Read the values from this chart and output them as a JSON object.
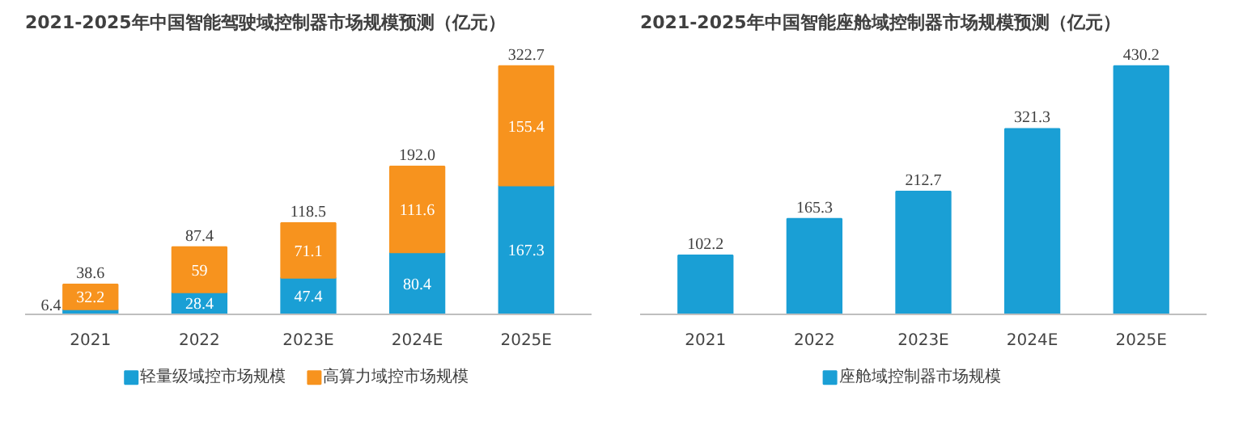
{
  "chart_data": [
    {
      "type": "bar",
      "title": "2021-2025年中国智能驾驶域控制器市场规模预测（亿元）",
      "categories": [
        "2021",
        "2022",
        "2023E",
        "2024E",
        "2025E"
      ],
      "stacked": true,
      "data_labels": true,
      "legend": "bottom",
      "series": [
        {
          "name": "轻量级域控市场规模",
          "color": "#1a9fd5",
          "values": [
            6.4,
            28.4,
            47.4,
            80.4,
            167.3
          ]
        },
        {
          "name": "高算力域控市场规模",
          "color": "#f7931e",
          "values": [
            32.2,
            59,
            71.1,
            111.6,
            155.4
          ]
        }
      ],
      "totals": [
        "38.6",
        "87.4",
        "118.5",
        "192.0",
        "322.7"
      ]
    },
    {
      "type": "bar",
      "title": "2021-2025年中国智能座舱域控制器市场规模预测（亿元）",
      "categories": [
        "2021",
        "2022",
        "2023E",
        "2024E",
        "2025E"
      ],
      "data_labels": true,
      "legend": "bottom",
      "series": [
        {
          "name": "座舱域控制器市场规模",
          "color": "#1a9fd5",
          "values": [
            102.2,
            165.3,
            212.7,
            321.3,
            430.2
          ]
        }
      ]
    }
  ]
}
